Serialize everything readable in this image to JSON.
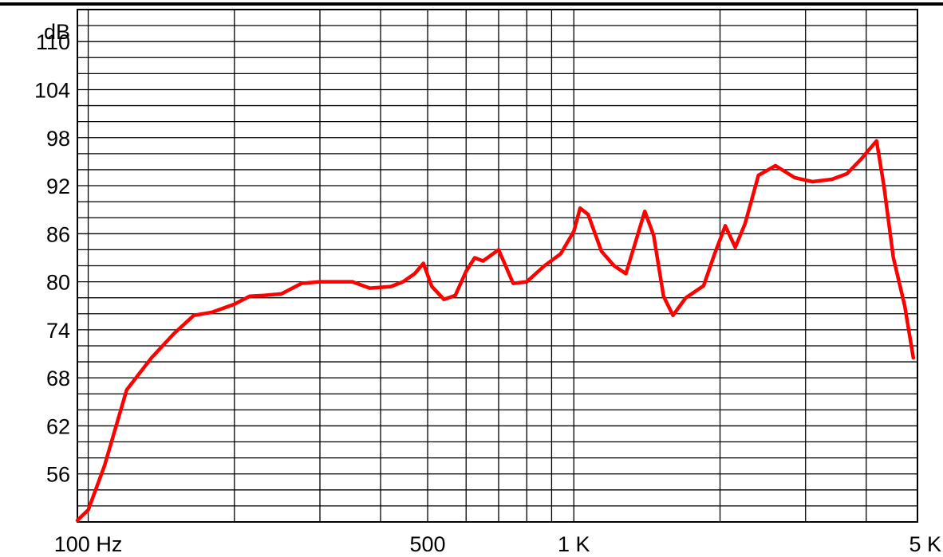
{
  "chart_data": {
    "type": "line",
    "title": "",
    "xlabel": "",
    "ylabel": "dB",
    "x_scale": "log",
    "xlim": [
      95,
      5100
    ],
    "ylim": [
      50,
      114
    ],
    "grid": true,
    "line_color": "#ff0000",
    "x_tick_labels": [
      {
        "value": 100,
        "label": "100 Hz"
      },
      {
        "value": 500,
        "label": "500"
      },
      {
        "value": 1000,
        "label": "1 K"
      },
      {
        "value": 5000,
        "label": "5 K"
      }
    ],
    "y_tick_labels": [
      {
        "value": 56,
        "label": "56"
      },
      {
        "value": 62,
        "label": "62"
      },
      {
        "value": 68,
        "label": "68"
      },
      {
        "value": 74,
        "label": "74"
      },
      {
        "value": 80,
        "label": "80"
      },
      {
        "value": 86,
        "label": "86"
      },
      {
        "value": 92,
        "label": "92"
      },
      {
        "value": 98,
        "label": "98"
      },
      {
        "value": 104,
        "label": "104"
      },
      {
        "value": 110,
        "label": "110"
      }
    ],
    "series": [
      {
        "x": [
          95,
          100,
          108,
          120,
          135,
          150,
          165,
          180,
          200,
          215,
          230,
          250,
          275,
          300,
          325,
          350,
          380,
          420,
          445,
          470,
          490,
          510,
          540,
          570,
          600,
          625,
          650,
          700,
          750,
          800,
          870,
          940,
          1000,
          1030,
          1070,
          1140,
          1210,
          1280,
          1340,
          1400,
          1460,
          1530,
          1600,
          1700,
          1850,
          1950,
          2050,
          2150,
          2250,
          2400,
          2600,
          2850,
          3100,
          3400,
          3650,
          3900,
          4200,
          4350,
          4550,
          4800,
          5000
        ],
        "y": [
          50.2,
          51.5,
          57,
          66.5,
          70.5,
          73.5,
          75.8,
          76.2,
          77.2,
          78.2,
          78.3,
          78.5,
          79.8,
          80,
          80,
          80,
          79.2,
          79.4,
          80,
          81,
          82.3,
          79.4,
          77.8,
          78.3,
          81.3,
          83,
          82.6,
          84,
          79.8,
          80,
          82,
          83.5,
          86.3,
          89.2,
          88.4,
          83.8,
          82,
          81,
          85,
          88.8,
          85.8,
          78.2,
          75.8,
          78,
          79.5,
          83.5,
          87,
          84.3,
          87.2,
          93.3,
          94.5,
          93,
          92.5,
          92.8,
          93.5,
          95.3,
          97.6,
          92,
          83,
          77,
          70.5
        ]
      }
    ]
  }
}
